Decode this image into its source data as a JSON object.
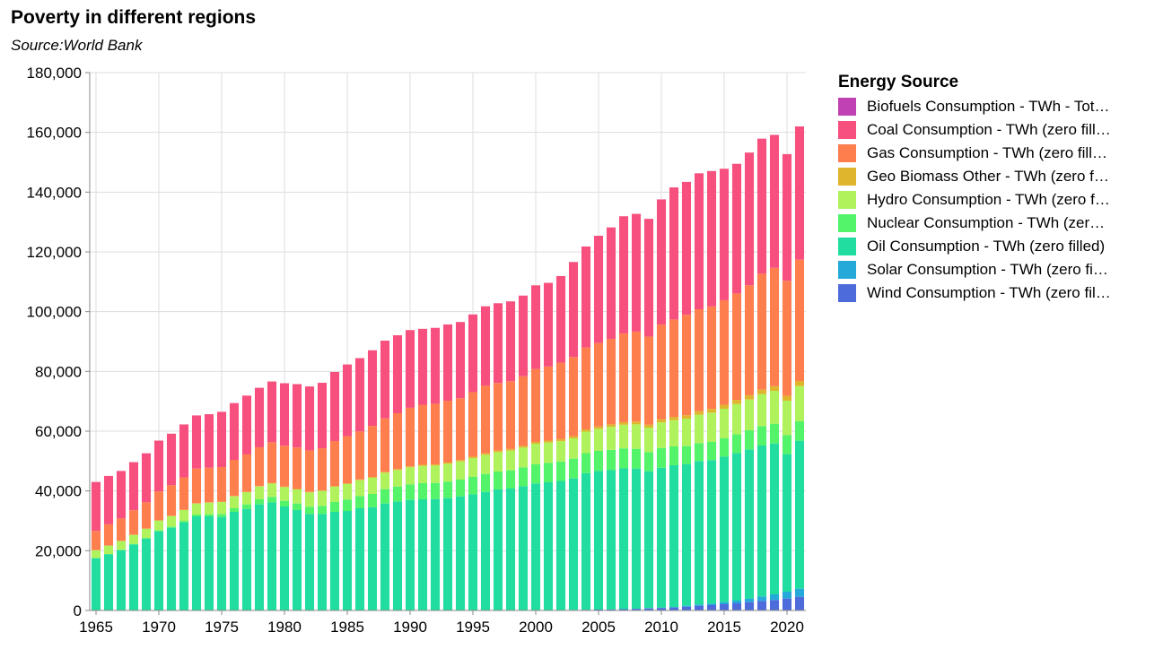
{
  "header": {
    "title": "Poverty in different regions",
    "subtitle": "Source:World Bank"
  },
  "legend": {
    "title": "Energy Source",
    "items": [
      {
        "label": "Biofuels Consumption - TWh - Tot…",
        "color": "#c041b3"
      },
      {
        "label": "Coal Consumption - TWh (zero fill…",
        "color": "#f7507e"
      },
      {
        "label": "Gas Consumption - TWh (zero fill…",
        "color": "#ff7e4d"
      },
      {
        "label": "Geo Biomass Other - TWh (zero f…",
        "color": "#e0b52e"
      },
      {
        "label": "Hydro Consumption - TWh (zero f…",
        "color": "#b0f25c"
      },
      {
        "label": "Nuclear Consumption - TWh (zer…",
        "color": "#53f36a"
      },
      {
        "label": "Oil Consumption - TWh (zero filled)",
        "color": "#21dea0"
      },
      {
        "label": "Solar Consumption - TWh (zero fi…",
        "color": "#24a9d9"
      },
      {
        "label": "Wind Consumption - TWh (zero fil…",
        "color": "#4e6bdb"
      }
    ]
  },
  "chart_data": {
    "type": "bar",
    "stacked": true,
    "title": "Poverty in different regions",
    "subtitle": "Source:World Bank",
    "xlabel": "",
    "ylabel": "",
    "ylim": [
      0,
      180000
    ],
    "yticks": [
      0,
      20000,
      40000,
      60000,
      80000,
      100000,
      120000,
      140000,
      160000,
      180000
    ],
    "ytick_labels": [
      "0",
      "20,000",
      "40,000",
      "60,000",
      "80,000",
      "100,000",
      "120,000",
      "140,000",
      "160,000",
      "180,000"
    ],
    "xticks": [
      1965,
      1970,
      1975,
      1980,
      1985,
      1990,
      1995,
      2000,
      2005,
      2010,
      2015,
      2020
    ],
    "xtick_labels": [
      "1965",
      "1970",
      "1975",
      "1980",
      "1985",
      "1990",
      "1995",
      "2000",
      "2005",
      "2010",
      "2015",
      "2020"
    ],
    "grid": true,
    "legend_position": "right",
    "categories": [
      1965,
      1966,
      1967,
      1968,
      1969,
      1970,
      1971,
      1972,
      1973,
      1974,
      1975,
      1976,
      1977,
      1978,
      1979,
      1980,
      1981,
      1982,
      1983,
      1984,
      1985,
      1986,
      1987,
      1988,
      1989,
      1990,
      1991,
      1992,
      1993,
      1994,
      1995,
      1996,
      1997,
      1998,
      1999,
      2000,
      2001,
      2002,
      2003,
      2004,
      2005,
      2006,
      2007,
      2008,
      2009,
      2010,
      2011,
      2012,
      2013,
      2014,
      2015,
      2016,
      2017,
      2018,
      2019,
      2020,
      2021
    ],
    "series": [
      {
        "name": "Wind Consumption - TWh (zero filled)",
        "color": "#4e6bdb",
        "values": [
          0,
          0,
          0,
          0,
          0,
          0,
          0,
          0,
          0,
          0,
          0,
          0,
          0,
          0,
          0,
          0,
          0,
          0,
          0,
          0,
          0,
          0,
          0,
          0,
          0,
          0,
          0,
          0,
          0,
          0,
          0,
          0,
          0,
          0,
          0,
          100,
          100,
          150,
          200,
          250,
          300,
          350,
          450,
          550,
          700,
          850,
          1000,
          1300,
          1600,
          1800,
          2100,
          2400,
          2800,
          3200,
          3500,
          4000,
          4600
        ]
      },
      {
        "name": "Solar Consumption - TWh (zero filled)",
        "color": "#24a9d9",
        "values": [
          0,
          0,
          0,
          0,
          0,
          0,
          0,
          0,
          0,
          0,
          0,
          0,
          0,
          0,
          0,
          0,
          0,
          0,
          0,
          0,
          0,
          0,
          0,
          0,
          0,
          0,
          0,
          0,
          0,
          0,
          0,
          0,
          0,
          0,
          0,
          0,
          0,
          0,
          0,
          0,
          0,
          0,
          0,
          50,
          100,
          100,
          200,
          300,
          400,
          500,
          700,
          900,
          1200,
          1500,
          1900,
          2300,
          2700
        ]
      },
      {
        "name": "Oil Consumption - TWh (zero filled)",
        "color": "#21dea0",
        "values": [
          17500,
          18800,
          20200,
          22100,
          24000,
          26500,
          27700,
          29500,
          31500,
          31500,
          31300,
          33000,
          34000,
          35500,
          36200,
          34800,
          33600,
          32300,
          32300,
          33000,
          33300,
          34200,
          34600,
          35800,
          36500,
          37000,
          37200,
          37300,
          37600,
          38200,
          38900,
          39700,
          40500,
          40800,
          41600,
          42400,
          42800,
          43200,
          44000,
          45700,
          46400,
          46600,
          47100,
          46900,
          45800,
          46800,
          47400,
          47400,
          48000,
          48000,
          48700,
          49400,
          49900,
          50500,
          50500,
          46000,
          49500
        ]
      },
      {
        "name": "Nuclear Consumption - TWh (zero filled)",
        "color": "#53f36a",
        "values": [
          70,
          100,
          150,
          200,
          250,
          300,
          400,
          500,
          600,
          700,
          1000,
          1200,
          1500,
          1700,
          1800,
          1900,
          2200,
          2400,
          2700,
          3300,
          3800,
          4100,
          4400,
          4800,
          5000,
          5200,
          5400,
          5400,
          5500,
          5600,
          5800,
          6000,
          6000,
          6100,
          6300,
          6400,
          6500,
          6500,
          6600,
          6700,
          6700,
          6800,
          6700,
          6600,
          6400,
          6600,
          6300,
          6000,
          6000,
          6100,
          6200,
          6300,
          6400,
          6500,
          6600,
          6400,
          6500
        ]
      },
      {
        "name": "Hydro Consumption - TWh (zero filled)",
        "color": "#b0f25c",
        "values": [
          2600,
          2800,
          2900,
          3000,
          3100,
          3300,
          3500,
          3600,
          3700,
          3900,
          4000,
          4000,
          4100,
          4300,
          4500,
          4600,
          4700,
          4800,
          5000,
          5100,
          5200,
          5300,
          5400,
          5500,
          5500,
          5700,
          5800,
          5800,
          6000,
          6100,
          6300,
          6400,
          6500,
          6600,
          6600,
          6900,
          6800,
          6800,
          6800,
          7200,
          7400,
          7700,
          7900,
          8200,
          8200,
          8600,
          8800,
          9200,
          9500,
          9800,
          9800,
          10100,
          10300,
          10700,
          11000,
          11500,
          11800
        ]
      },
      {
        "name": "Geo Biomass Other - TWh (zero filled)",
        "color": "#e0b52e",
        "values": [
          30,
          30,
          40,
          40,
          50,
          50,
          60,
          60,
          70,
          80,
          90,
          100,
          110,
          120,
          130,
          140,
          150,
          170,
          190,
          210,
          230,
          250,
          270,
          290,
          310,
          330,
          350,
          380,
          410,
          440,
          470,
          500,
          520,
          550,
          580,
          610,
          640,
          680,
          720,
          760,
          800,
          840,
          880,
          920,
          970,
          1020,
          1080,
          1140,
          1200,
          1260,
          1320,
          1380,
          1440,
          1500,
          1560,
          1620,
          1700
        ]
      },
      {
        "name": "Gas Consumption - TWh (zero filled)",
        "color": "#ff7e4d",
        "values": [
          6400,
          7100,
          7500,
          8200,
          8800,
          9700,
          10300,
          10900,
          11600,
          11600,
          11600,
          12100,
          12500,
          13000,
          13700,
          13700,
          13900,
          13900,
          14100,
          15100,
          15800,
          16100,
          17100,
          17900,
          18700,
          19600,
          20100,
          20300,
          20700,
          20700,
          21600,
          22600,
          22600,
          22700,
          23300,
          24400,
          24800,
          25600,
          26500,
          27400,
          27900,
          28600,
          29700,
          30100,
          29500,
          31700,
          32600,
          33600,
          34100,
          34300,
          35000,
          35600,
          36800,
          38800,
          39600,
          38500,
          40600
        ]
      },
      {
        "name": "Coal Consumption - TWh (zero filled)",
        "color": "#f7507e",
        "values": [
          16400,
          16200,
          15900,
          16100,
          16400,
          17000,
          17200,
          17700,
          17800,
          17900,
          18500,
          19000,
          19700,
          19900,
          20300,
          20900,
          21200,
          21400,
          21900,
          23100,
          24000,
          24500,
          25300,
          26000,
          26100,
          26000,
          25400,
          25400,
          25500,
          25500,
          26000,
          26600,
          26700,
          26700,
          27000,
          28000,
          28000,
          29000,
          31800,
          33800,
          35900,
          37300,
          39200,
          39400,
          39400,
          41900,
          44200,
          44500,
          45500,
          45300,
          44000,
          43400,
          44400,
          45200,
          44500,
          42400,
          44600
        ]
      },
      {
        "name": "Biofuels Consumption - TWh - Total",
        "color": "#c041b3",
        "values": [
          0,
          0,
          0,
          0,
          0,
          0,
          0,
          0,
          0,
          0,
          0,
          0,
          0,
          0,
          0,
          0,
          0,
          0,
          0,
          0,
          0,
          0,
          0,
          0,
          0,
          0,
          0,
          0,
          0,
          0,
          0,
          0,
          0,
          0,
          0,
          0,
          0,
          0,
          0,
          0,
          0,
          0,
          0,
          0,
          0,
          0,
          0,
          0,
          0,
          0,
          0,
          0,
          0,
          0,
          0,
          0,
          0
        ]
      }
    ]
  }
}
